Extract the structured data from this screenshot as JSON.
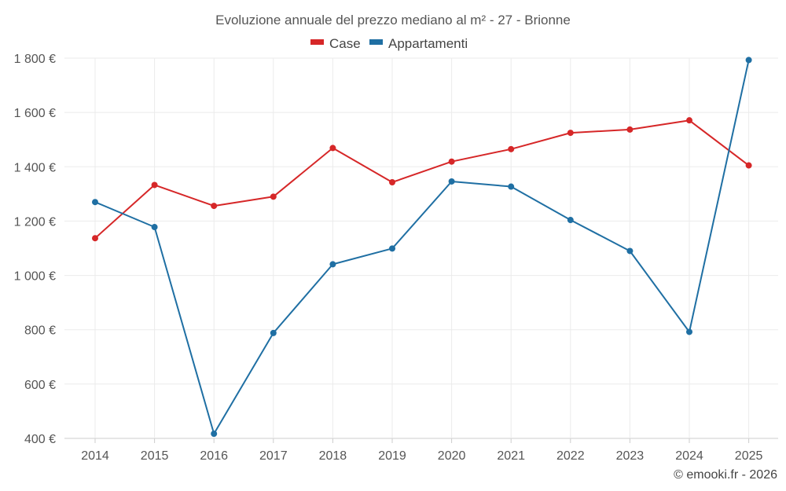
{
  "chart_data": {
    "type": "line",
    "title": "Evoluzione annuale del prezzo mediano al m² - 27 - Brionne",
    "categories": [
      "2014",
      "2015",
      "2016",
      "2017",
      "2018",
      "2019",
      "2020",
      "2021",
      "2022",
      "2023",
      "2024",
      "2025"
    ],
    "series": [
      {
        "name": "Case",
        "color": "#d62728",
        "values": [
          1137,
          1333,
          1256,
          1290,
          1469,
          1343,
          1419,
          1465,
          1525,
          1537,
          1571,
          1405
        ]
      },
      {
        "name": "Appartamenti",
        "color": "#1f6fa3",
        "values": [
          1270,
          1178,
          417,
          788,
          1041,
          1099,
          1346,
          1327,
          1204,
          1090,
          792,
          1793
        ]
      }
    ],
    "ylim": [
      400,
      1800
    ],
    "yticks": [
      400,
      600,
      800,
      1000,
      1200,
      1400,
      1600,
      1800
    ],
    "ytick_labels": [
      "400 €",
      "600 €",
      "800 €",
      "1 000 €",
      "1 200 €",
      "1 400 €",
      "1 600 €",
      "1 800 €"
    ],
    "xlabel": "",
    "ylabel": "",
    "grid": true,
    "legend_position": "top-center"
  },
  "credit": "© emooki.fr - 2026"
}
